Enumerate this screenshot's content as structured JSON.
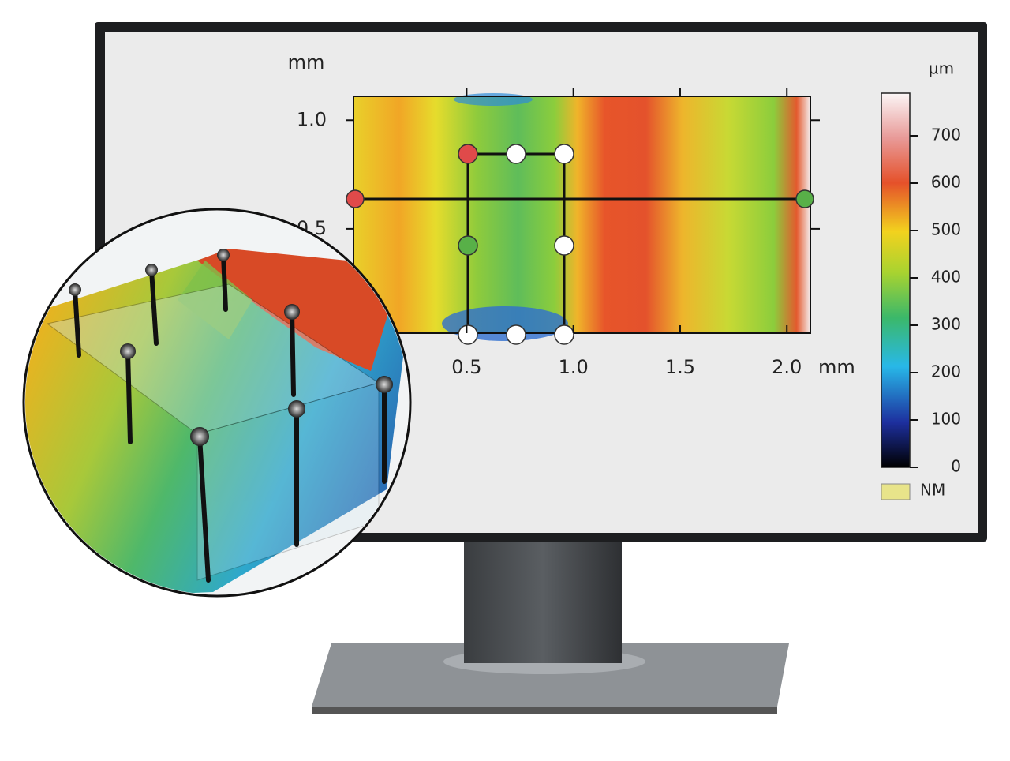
{
  "chart_data": {
    "type": "heatmap",
    "y_unit": "mm",
    "x_unit": "mm",
    "xlim": [
      -0.03,
      2.11
    ],
    "ylim": [
      0.02,
      1.11
    ],
    "xticks": [
      0.5,
      {
        "value": 1,
        "label": "1.0"
      },
      1.5,
      {
        "value": 2,
        "label": "2.0"
      }
    ],
    "yticks": [
      0.5,
      {
        "value": 1,
        "label": "1.0"
      }
    ],
    "colorbar": {
      "label": "µm",
      "lim": [
        0,
        790
      ],
      "ticks": [
        0,
        100,
        200,
        300,
        400,
        500,
        600,
        700
      ]
    },
    "legend": {
      "label": "NM",
      "color": "#e8e48a"
    }
  }
}
